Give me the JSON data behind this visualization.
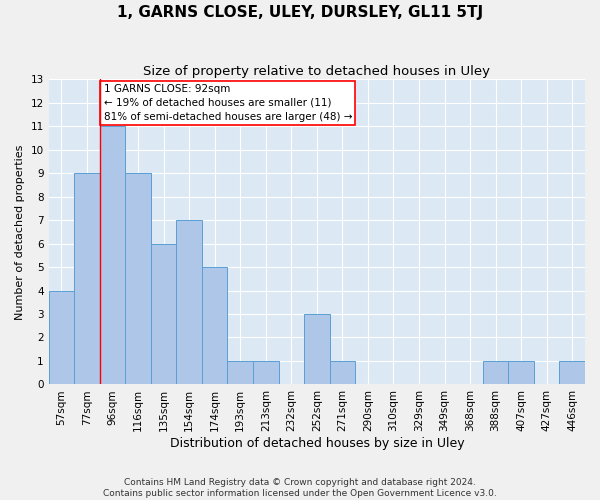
{
  "title": "1, GARNS CLOSE, ULEY, DURSLEY, GL11 5TJ",
  "subtitle": "Size of property relative to detached houses in Uley",
  "xlabel": "Distribution of detached houses by size in Uley",
  "ylabel": "Number of detached properties",
  "categories": [
    "57sqm",
    "77sqm",
    "96sqm",
    "116sqm",
    "135sqm",
    "154sqm",
    "174sqm",
    "193sqm",
    "213sqm",
    "232sqm",
    "252sqm",
    "271sqm",
    "290sqm",
    "310sqm",
    "329sqm",
    "349sqm",
    "368sqm",
    "388sqm",
    "407sqm",
    "427sqm",
    "446sqm"
  ],
  "values": [
    4,
    9,
    11,
    9,
    6,
    7,
    5,
    1,
    1,
    0,
    3,
    1,
    0,
    0,
    0,
    0,
    0,
    1,
    1,
    0,
    1
  ],
  "bar_color": "#aec6e8",
  "bar_edge_color": "#5a9fd4",
  "background_color": "#dce9f5",
  "grid_color": "#ffffff",
  "property_line_x": 1.5,
  "annotation_text": "1 GARNS CLOSE: 92sqm\n← 19% of detached houses are smaller (11)\n81% of semi-detached houses are larger (48) →",
  "ylim": [
    0,
    13
  ],
  "yticks": [
    0,
    1,
    2,
    3,
    4,
    5,
    6,
    7,
    8,
    9,
    10,
    11,
    12,
    13
  ],
  "footer": "Contains HM Land Registry data © Crown copyright and database right 2024.\nContains public sector information licensed under the Open Government Licence v3.0.",
  "title_fontsize": 11,
  "subtitle_fontsize": 9.5,
  "xlabel_fontsize": 9,
  "ylabel_fontsize": 8,
  "tick_fontsize": 7.5,
  "annotation_fontsize": 7.5,
  "footer_fontsize": 6.5
}
